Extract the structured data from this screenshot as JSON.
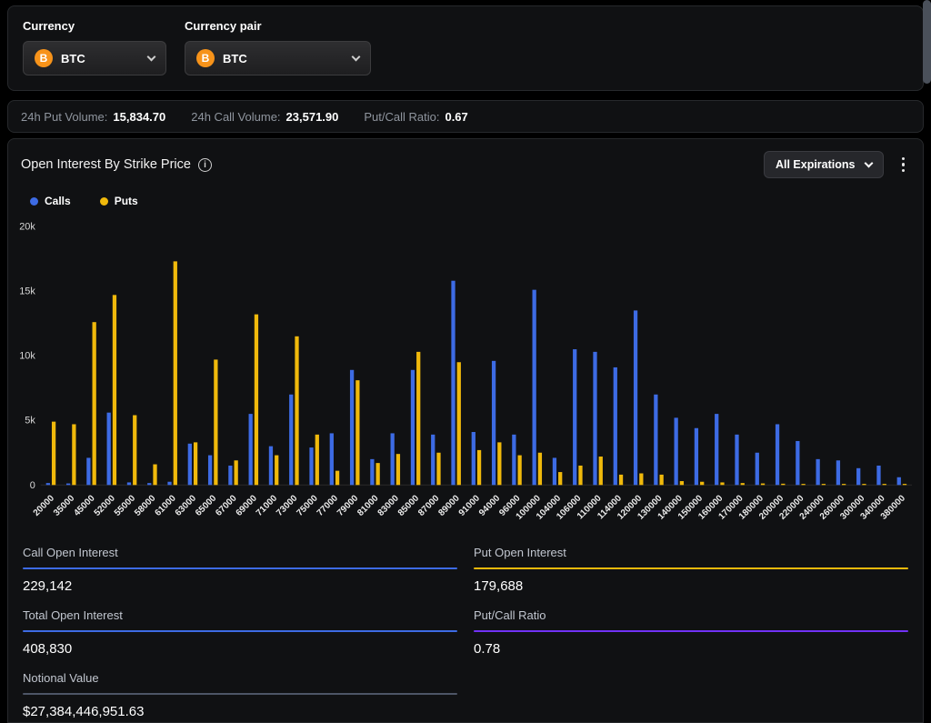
{
  "header": {
    "currency_label": "Currency",
    "currency_pair_label": "Currency pair",
    "currency_value": "BTC",
    "currency_pair_value": "BTC",
    "bitcoin_color": "#F7931A"
  },
  "stats_bar": {
    "put_volume_label": "24h Put Volume:",
    "put_volume_value": "15,834.70",
    "call_volume_label": "24h Call Volume:",
    "call_volume_value": "23,571.90",
    "put_call_ratio_label": "Put/Call Ratio:",
    "put_call_ratio_value": "0.67"
  },
  "panel": {
    "title": "Open Interest By Strike Price",
    "expirations_button": "All Expirations"
  },
  "chart_data": {
    "type": "bar",
    "title": "Open Interest By Strike Price",
    "categories": [
      "20000",
      "35000",
      "45000",
      "52000",
      "55000",
      "58000",
      "61000",
      "63000",
      "65000",
      "67000",
      "69000",
      "71000",
      "73000",
      "75000",
      "77000",
      "79000",
      "81000",
      "83000",
      "85000",
      "87000",
      "89000",
      "91000",
      "94000",
      "96000",
      "100000",
      "104000",
      "106000",
      "110000",
      "114000",
      "120000",
      "130000",
      "140000",
      "150000",
      "160000",
      "170000",
      "180000",
      "200000",
      "220000",
      "240000",
      "260000",
      "300000",
      "340000",
      "380000"
    ],
    "series": [
      {
        "name": "Calls",
        "color": "#3d6be4",
        "values": [
          150,
          120,
          2100,
          5600,
          200,
          150,
          250,
          3200,
          2300,
          1500,
          5500,
          3000,
          7000,
          2900,
          4000,
          8900,
          2000,
          4000,
          8900,
          3900,
          15800,
          4100,
          9600,
          3900,
          15100,
          2100,
          10500,
          10300,
          9100,
          13500,
          7000,
          5200,
          4400,
          5500,
          3900,
          2500,
          4700,
          3400,
          2000,
          1900,
          1300,
          1500,
          600
        ]
      },
      {
        "name": "Puts",
        "color": "#f0b90b",
        "values": [
          4900,
          4700,
          12600,
          14700,
          5400,
          1600,
          17300,
          3300,
          9700,
          1900,
          13200,
          2300,
          11500,
          3900,
          1100,
          8100,
          1700,
          2400,
          10300,
          2500,
          9500,
          2700,
          3300,
          2300,
          2500,
          1000,
          1500,
          2200,
          800,
          900,
          800,
          300,
          250,
          200,
          150,
          120,
          100,
          80,
          60,
          50,
          40,
          30,
          20
        ]
      }
    ],
    "ylim": [
      0,
      20000
    ],
    "ytick_values": [
      0,
      5000,
      10000,
      15000,
      20000
    ],
    "ytick_labels": [
      "0",
      "5k",
      "10k",
      "15k",
      "20k"
    ],
    "xlabel": "",
    "ylabel": "",
    "grid": false,
    "legend_position": "top-left"
  },
  "footer_stats": {
    "items": [
      {
        "label": "Call Open Interest",
        "value": "229,142",
        "accent": "#3d6be4"
      },
      {
        "label": "Put Open Interest",
        "value": "179,688",
        "accent": "#f0b90b"
      },
      {
        "label": "Total Open Interest",
        "value": "408,830",
        "accent": "#3d6be4"
      },
      {
        "label": "Put/Call Ratio",
        "value": "0.78",
        "accent": "#7132f5"
      },
      {
        "label": "Notional Value",
        "value": "$27,384,446,951.63",
        "accent": "#4d5566"
      }
    ]
  }
}
